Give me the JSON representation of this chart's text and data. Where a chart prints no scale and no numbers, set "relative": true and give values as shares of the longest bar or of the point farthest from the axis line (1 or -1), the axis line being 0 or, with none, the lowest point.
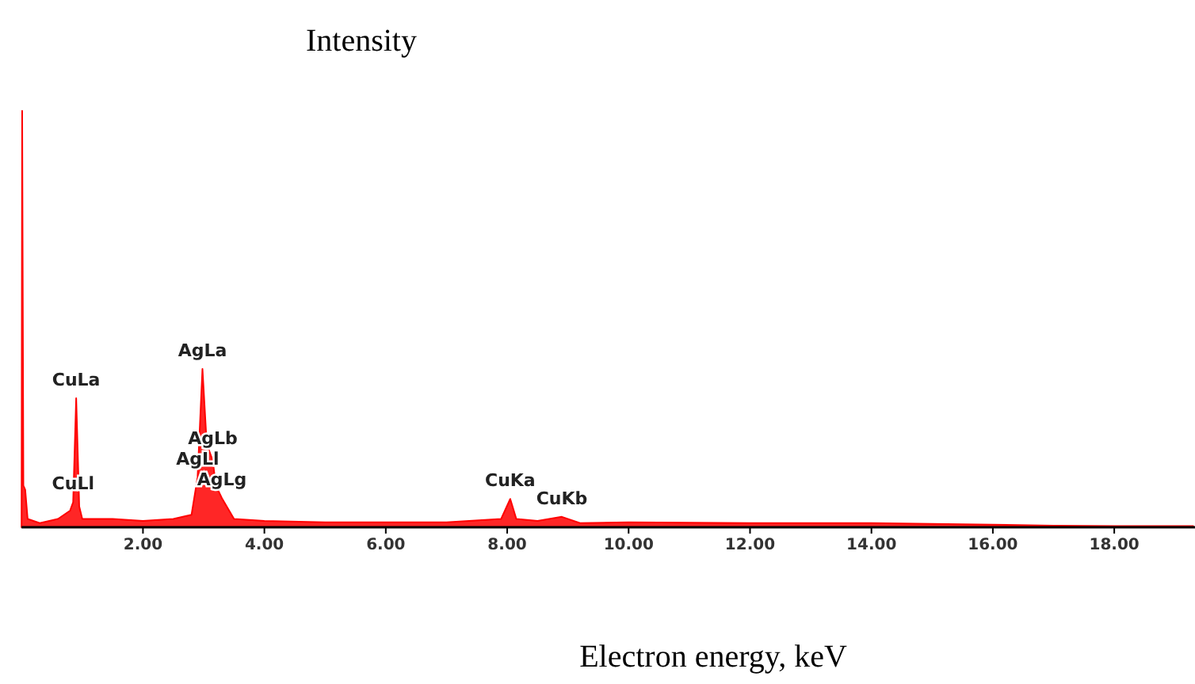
{
  "chart_data": {
    "type": "area",
    "relative": true,
    "ylabel": "Intensity",
    "xlabel": "Electron energy, keV",
    "tick_labels": "x",
    "xlim": [
      0,
      19.33
    ],
    "xticks": [
      {
        "value": 2,
        "label": "2.00"
      },
      {
        "value": 4,
        "label": "4.00"
      },
      {
        "value": 6,
        "label": "6.00"
      },
      {
        "value": 8,
        "label": "8.00"
      },
      {
        "value": 10,
        "label": "10.00"
      },
      {
        "value": 12,
        "label": "12.00"
      },
      {
        "value": 14,
        "label": "14.00"
      },
      {
        "value": 16,
        "label": "16.00"
      },
      {
        "value": 18,
        "label": "18.00"
      }
    ],
    "x": [
      0,
      0.01,
      0.03,
      0.06,
      0.1,
      0.3,
      0.6,
      0.8,
      0.85,
      0.9,
      0.95,
      1.0,
      1.5,
      2.0,
      2.5,
      2.8,
      2.9,
      2.98,
      3.05,
      3.15,
      3.2,
      3.3,
      3.5,
      4,
      5,
      6,
      7,
      7.9,
      8.05,
      8.15,
      8.5,
      8.9,
      9.2,
      10,
      12,
      14,
      16,
      17,
      18,
      19.3
    ],
    "series": [
      {
        "color": "#ff0000",
        "values": [
          0,
          1.0,
          0.1,
          0.09,
          0.02,
          0.01,
          0.02,
          0.04,
          0.06,
          0.31,
          0.05,
          0.02,
          0.02,
          0.015,
          0.02,
          0.03,
          0.12,
          0.38,
          0.2,
          0.16,
          0.1,
          0.07,
          0.02,
          0.015,
          0.012,
          0.012,
          0.012,
          0.02,
          0.068,
          0.02,
          0.015,
          0.025,
          0.01,
          0.012,
          0.01,
          0.01,
          0.006,
          0.004,
          0.003,
          0.003
        ]
      }
    ],
    "annotations": [
      {
        "text": "CuLa",
        "x": 0.9,
        "y": 0.31
      },
      {
        "text": "CuLl",
        "x": 0.85,
        "y": 0.06
      },
      {
        "text": "AgLa",
        "x": 2.98,
        "y": 0.38
      },
      {
        "text": "AgLb",
        "x": 3.15,
        "y": 0.16
      },
      {
        "text": "AgLl",
        "x": 2.9,
        "y": 0.12
      },
      {
        "text": "AgLg",
        "x": 3.3,
        "y": 0.07
      },
      {
        "text": "CuKa",
        "x": 8.05,
        "y": 0.068
      },
      {
        "text": "CuKb",
        "x": 8.9,
        "y": 0.025
      }
    ]
  }
}
